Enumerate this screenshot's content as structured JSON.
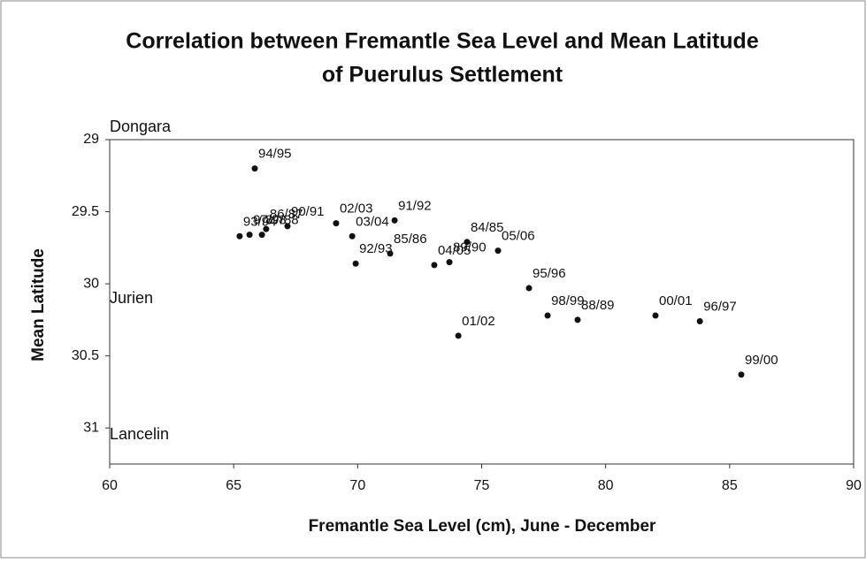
{
  "chart_data": {
    "type": "scatter",
    "title": [
      "Correlation between Fremantle Sea Level and Mean Latitude",
      "of Puerulus Settlement"
    ],
    "x_label": "Fremantle Sea Level (cm), June - December",
    "y_label": "Mean Latitude",
    "annotations": [
      "Dongara",
      "Jurien",
      "Lancelin"
    ],
    "inverted_y": true,
    "color": "#111111",
    "xlim": [
      60,
      90
    ],
    "xticks": [
      60,
      65,
      70,
      75,
      80,
      85,
      90
    ],
    "ylim": [
      29,
      31.25
    ],
    "yticks": [
      29,
      29.5,
      30,
      30.5,
      31
    ],
    "labels": [
      "94/95",
      "86/87",
      "97/98",
      "93/94",
      "87/88",
      "90/91",
      "02/03",
      "03/04",
      "91/92",
      "92/93",
      "85/86",
      "04/05",
      "89/90",
      "84/85",
      "05/06",
      "95/96",
      "98/99",
      "88/89",
      "00/01",
      "96/97",
      "01/02",
      "99/00"
    ],
    "x": [
      65.85,
      66.31,
      65.64,
      65.24,
      66.14,
      67.17,
      69.13,
      69.78,
      71.49,
      69.92,
      71.31,
      73.09,
      73.7,
      74.41,
      75.66,
      76.91,
      77.66,
      78.87,
      82.01,
      83.8,
      74.06,
      85.47
    ],
    "y": [
      29.2,
      29.62,
      29.66,
      29.67,
      29.66,
      29.6,
      29.58,
      29.67,
      29.56,
      29.86,
      29.79,
      29.87,
      29.85,
      29.71,
      29.77,
      30.03,
      30.22,
      30.25,
      30.22,
      30.26,
      30.36,
      30.63
    ]
  }
}
